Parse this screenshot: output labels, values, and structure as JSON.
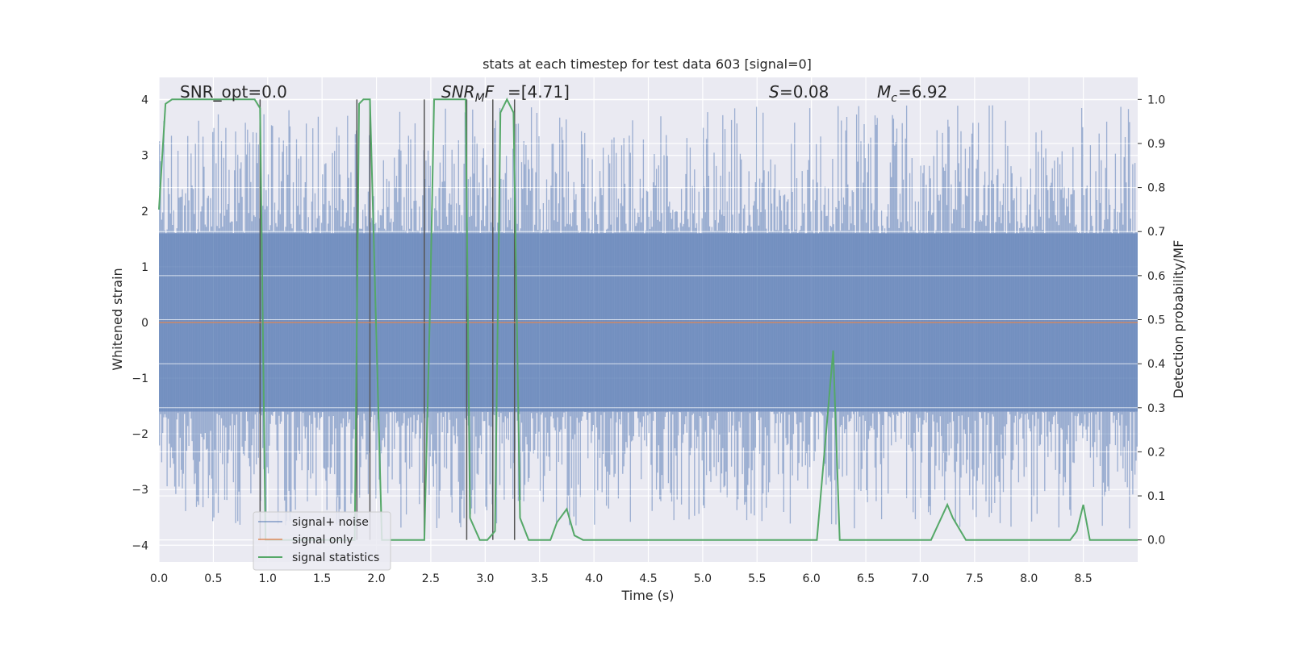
{
  "chart_data": {
    "type": "line",
    "title": "stats at each timestep for test data 603 [signal=0]",
    "xlabel": "Time (s)",
    "ylabel_left": "Whitened strain",
    "ylabel_right": "Detection probability/MF",
    "xlim": [
      0.0,
      9.0
    ],
    "ylim_left": [
      -4.3,
      4.4
    ],
    "ylim_right": [
      -0.05,
      1.05
    ],
    "xticks": [
      "0.0",
      "0.5",
      "1.0",
      "1.5",
      "2.0",
      "2.5",
      "3.0",
      "3.5",
      "4.0",
      "4.5",
      "5.0",
      "5.5",
      "6.0",
      "6.5",
      "7.0",
      "7.5",
      "8.0",
      "8.5"
    ],
    "yticks_left": [
      "4",
      "3",
      "2",
      "1",
      "0",
      "−1",
      "−2",
      "−3",
      "−4"
    ],
    "yticks_right": [
      "1.0",
      "0.9",
      "0.8",
      "0.7",
      "0.6",
      "0.5",
      "0.4",
      "0.3",
      "0.2",
      "0.1",
      "0.0"
    ],
    "grid": true,
    "legend_position": "lower-left",
    "annotations": {
      "snr_opt": "SNR_opt=0.0",
      "snr_mf": "=[4.71]",
      "s": "=0.08",
      "mc": "=6.92"
    },
    "noise_envelope": {
      "description_values": "signal+ noise strain fluctuates roughly between -3.7 and 3.9",
      "core_band": [
        -1.6,
        1.6
      ]
    },
    "vertical_markers_x": [
      0.93,
      1.82,
      1.94,
      2.44,
      2.83,
      3.07,
      3.27
    ],
    "series": [
      {
        "name": "signal+ noise",
        "color": "#4c72b0",
        "axis": "left"
      },
      {
        "name": "signal only",
        "color": "#dd8452",
        "axis": "left",
        "values_const": 0.0
      },
      {
        "name": "signal statistics",
        "color": "#55a868",
        "axis": "right",
        "x": [
          0.0,
          0.06,
          0.12,
          0.2,
          0.5,
          0.88,
          0.93,
          0.98,
          1.8,
          1.84,
          1.88,
          1.94,
          2.05,
          2.44,
          2.49,
          2.53,
          2.82,
          2.86,
          2.95,
          3.02,
          3.09,
          3.14,
          3.2,
          3.26,
          3.32,
          3.4,
          3.6,
          3.66,
          3.75,
          3.82,
          3.9,
          6.05,
          6.2,
          6.26,
          6.5,
          6.6,
          7.0,
          7.1,
          7.25,
          7.3,
          7.42,
          7.5,
          8.38,
          8.44,
          8.5,
          8.56,
          8.7,
          9.0
        ],
        "values": [
          0.75,
          0.99,
          1.0,
          1.0,
          1.0,
          1.0,
          0.98,
          0.0,
          0.0,
          0.99,
          1.0,
          1.0,
          0.0,
          0.0,
          0.5,
          1.0,
          1.0,
          0.05,
          0.0,
          0.0,
          0.02,
          0.97,
          1.0,
          0.97,
          0.05,
          0.0,
          0.0,
          0.04,
          0.07,
          0.01,
          0.0,
          0.0,
          0.43,
          0.0,
          0.0,
          0.0,
          0.0,
          0.0,
          0.08,
          0.05,
          0.0,
          0.0,
          0.0,
          0.02,
          0.08,
          0.0,
          0.0,
          0.0
        ]
      }
    ]
  }
}
